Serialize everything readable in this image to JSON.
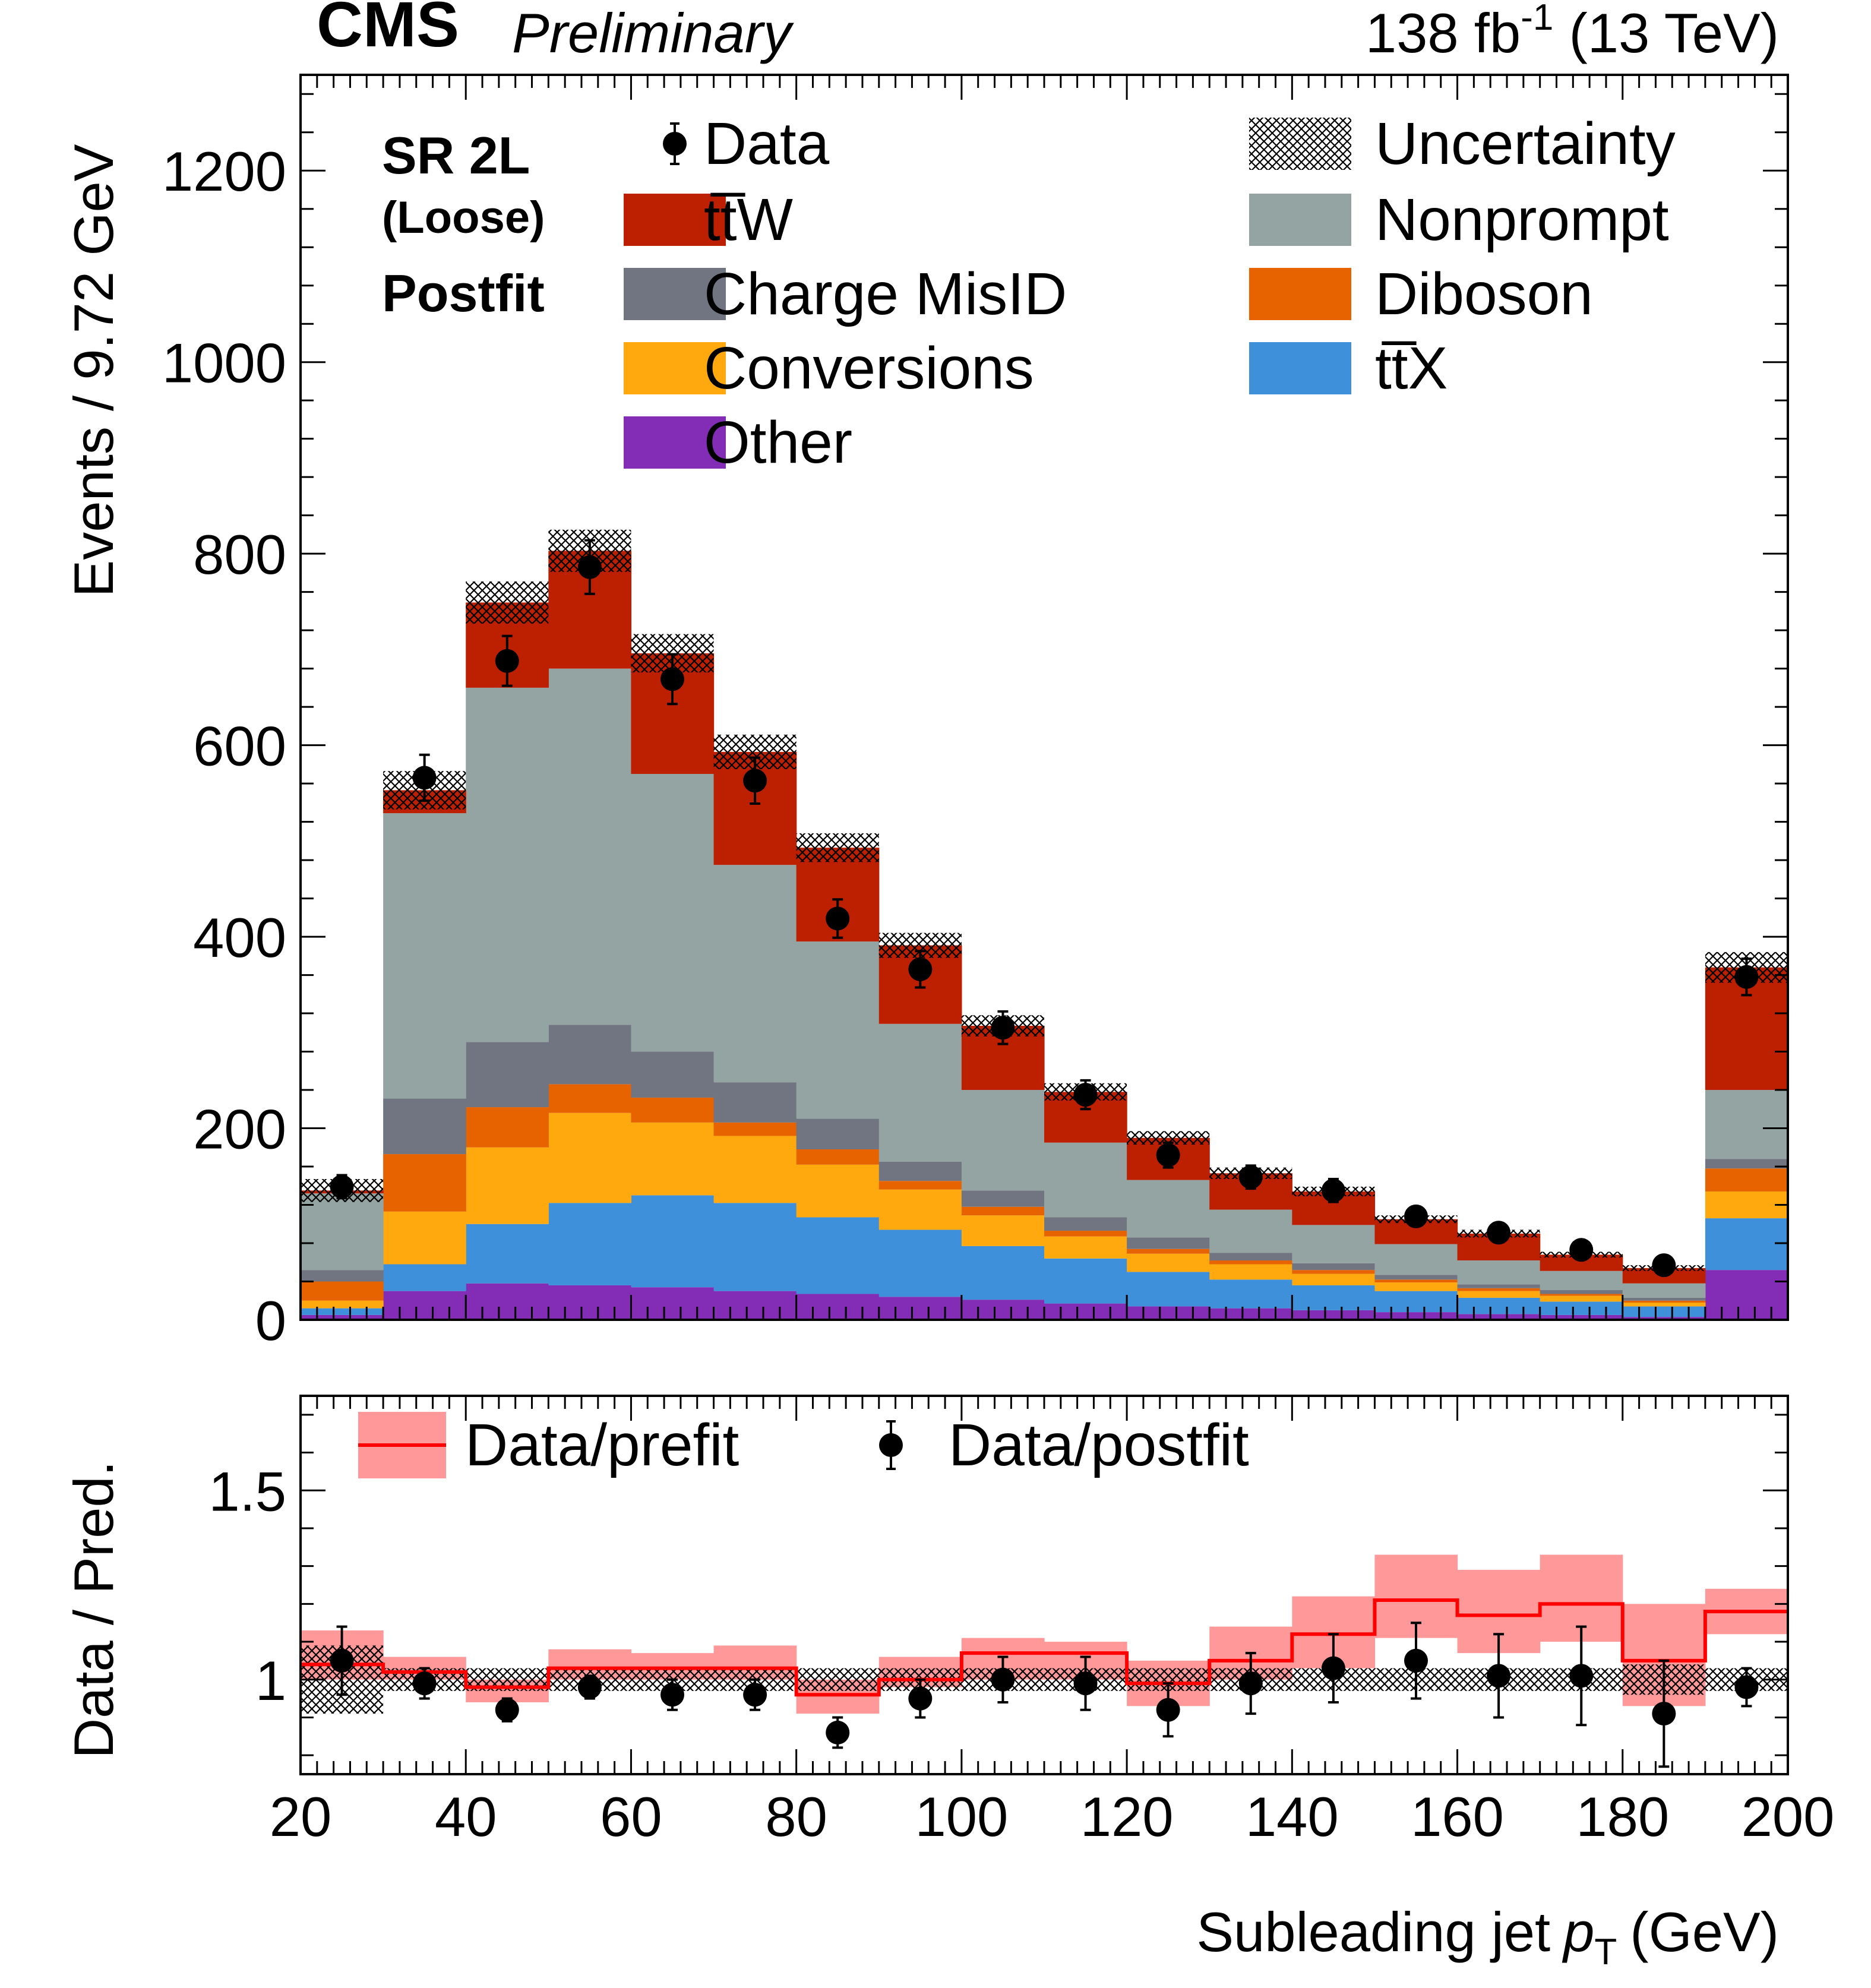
{
  "header": {
    "experiment": "CMS",
    "status": "Preliminary",
    "lumi_value": "138 fb",
    "lumi_exp": "-1",
    "energy": " (13 TeV)"
  },
  "labels": {
    "region": "SR 2L",
    "selection": "(Loose)",
    "fit": "Postfit"
  },
  "colors": {
    "ttW": "#bd1f01",
    "Nonprompt": "#94a4a2",
    "ChargeMisID": "#717581",
    "Diboson": "#e76300",
    "Conversions": "#ffa90e",
    "ttX": "#3f90da",
    "Other": "#832db6",
    "prefit_line": "#ff0000",
    "prefit_band": "#ff9999"
  },
  "chart_data": [
    {
      "type": "bar",
      "stacked": true,
      "ylabel": "Events / 9.72 GeV",
      "xlim": [
        20,
        200
      ],
      "ylim": [
        0,
        1300
      ],
      "yticks": [
        0,
        200,
        400,
        600,
        800,
        1000,
        1200
      ],
      "bin_edges": [
        20,
        30,
        40,
        50,
        60,
        70,
        80,
        90,
        100,
        110,
        120,
        130,
        140,
        150,
        160,
        170,
        180,
        190,
        200
      ],
      "legend": [
        {
          "name": "Data",
          "kind": "marker"
        },
        {
          "name": "Uncertainty",
          "kind": "hatch"
        },
        {
          "name": "tt̅W",
          "kind": "fill",
          "color_key": "ttW"
        },
        {
          "name": "Nonprompt",
          "kind": "fill",
          "color_key": "Nonprompt"
        },
        {
          "name": "Charge MisID",
          "kind": "fill",
          "color_key": "ChargeMisID"
        },
        {
          "name": "Diboson",
          "kind": "fill",
          "color_key": "Diboson"
        },
        {
          "name": "Conversions",
          "kind": "fill",
          "color_key": "Conversions"
        },
        {
          "name": "tt̅X",
          "kind": "fill",
          "color_key": "ttX"
        },
        {
          "name": "Other",
          "kind": "fill",
          "color_key": "Other"
        }
      ],
      "series": [
        {
          "name": "Other",
          "color_key": "Other",
          "values": [
            5,
            30,
            38,
            36,
            34,
            30,
            27,
            24,
            21,
            17,
            14,
            12,
            10,
            8,
            6,
            5,
            3,
            52
          ]
        },
        {
          "name": "tt̅X",
          "color_key": "ttX",
          "values": [
            7,
            28,
            62,
            86,
            96,
            92,
            80,
            70,
            56,
            47,
            36,
            30,
            26,
            22,
            17,
            14,
            11,
            54
          ]
        },
        {
          "name": "Conversions",
          "color_key": "Conversions",
          "values": [
            8,
            55,
            80,
            94,
            76,
            70,
            55,
            42,
            32,
            23,
            19,
            16,
            12,
            9,
            7,
            6,
            4,
            28
          ]
        },
        {
          "name": "Diboson",
          "color_key": "Diboson",
          "values": [
            20,
            60,
            42,
            30,
            26,
            14,
            16,
            9,
            9,
            6,
            5,
            4,
            4,
            3,
            3,
            2,
            2,
            24
          ]
        },
        {
          "name": "Charge MisID",
          "color_key": "ChargeMisID",
          "values": [
            12,
            58,
            68,
            62,
            48,
            42,
            32,
            20,
            17,
            14,
            12,
            8,
            7,
            5,
            4,
            4,
            3,
            10
          ]
        },
        {
          "name": "Nonprompt",
          "color_key": "Nonprompt",
          "values": [
            80,
            298,
            370,
            372,
            290,
            227,
            185,
            144,
            105,
            78,
            60,
            45,
            40,
            32,
            25,
            20,
            15,
            72
          ]
        },
        {
          "name": "tt̅W",
          "color_key": "ttW",
          "values": [
            3,
            24,
            89,
            123,
            126,
            118,
            98,
            82,
            67,
            53,
            44,
            38,
            35,
            26,
            28,
            17,
            16,
            128
          ]
        }
      ],
      "data": {
        "name": "Data",
        "values": [
          139,
          566,
          688,
          786,
          669,
          563,
          419,
          366,
          305,
          235,
          172,
          149,
          135,
          108,
          91,
          73,
          57,
          358
        ],
        "errors": [
          12,
          24,
          26,
          28,
          26,
          24,
          20,
          19,
          17,
          15,
          13,
          12,
          12,
          10,
          10,
          9,
          8,
          19
        ]
      },
      "uncertainty": {
        "name": "Uncertainty",
        "half_width": [
          12,
          20,
          22,
          22,
          20,
          18,
          15,
          13,
          11,
          9,
          7,
          6,
          5,
          4,
          4,
          3,
          3,
          16
        ]
      }
    },
    {
      "type": "line",
      "ylabel": "Data / Pred.",
      "xlabel": "Subleading jet",
      "xlabel_math": "p",
      "xlabel_sub": "T",
      "xlabel_unit": "(GeV)",
      "xlim": [
        20,
        200
      ],
      "ylim": [
        0.75,
        1.75
      ],
      "xticks": [
        20,
        40,
        60,
        80,
        100,
        120,
        140,
        160,
        180,
        200
      ],
      "ytick_labels": [
        {
          "value": 1.5,
          "label": "1.5"
        },
        {
          "value": 1.0,
          "label": "1"
        }
      ],
      "series": [
        {
          "name": "Data/prefit",
          "kind": "step_with_band",
          "values": [
            1.04,
            1.02,
            0.98,
            1.03,
            1.03,
            1.03,
            0.96,
            1.0,
            1.07,
            1.07,
            0.99,
            1.05,
            1.12,
            1.21,
            1.17,
            1.2,
            1.05,
            1.18
          ],
          "band": [
            [
              1.0,
              1.13
            ],
            [
              1.0,
              1.06
            ],
            [
              0.94,
              1.0
            ],
            [
              1.0,
              1.08
            ],
            [
              1.0,
              1.07
            ],
            [
              1.0,
              1.09
            ],
            [
              0.91,
              1.0
            ],
            [
              0.98,
              1.06
            ],
            [
              1.0,
              1.11
            ],
            [
              1.0,
              1.1
            ],
            [
              0.93,
              1.05
            ],
            [
              1.0,
              1.14
            ],
            [
              1.03,
              1.22
            ],
            [
              1.11,
              1.33
            ],
            [
              1.07,
              1.29
            ],
            [
              1.1,
              1.33
            ],
            [
              0.93,
              1.2
            ],
            [
              1.12,
              1.24
            ]
          ]
        },
        {
          "name": "Data/postfit",
          "kind": "points",
          "values": [
            1.05,
            0.99,
            0.92,
            0.98,
            0.96,
            0.96,
            0.86,
            0.95,
            1.0,
            0.99,
            0.92,
            0.99,
            1.03,
            1.05,
            1.01,
            1.01,
            0.91,
            0.98
          ],
          "errors": [
            0.09,
            0.04,
            0.03,
            0.03,
            0.04,
            0.04,
            0.04,
            0.05,
            0.06,
            0.07,
            0.07,
            0.08,
            0.09,
            0.1,
            0.11,
            0.13,
            0.14,
            0.05
          ]
        },
        {
          "name": "Uncertainty",
          "kind": "hatch_band",
          "half_width": [
            0.09,
            0.03,
            0.03,
            0.03,
            0.03,
            0.03,
            0.03,
            0.03,
            0.03,
            0.03,
            0.03,
            0.03,
            0.03,
            0.03,
            0.03,
            0.03,
            0.04,
            0.03
          ]
        }
      ]
    }
  ]
}
